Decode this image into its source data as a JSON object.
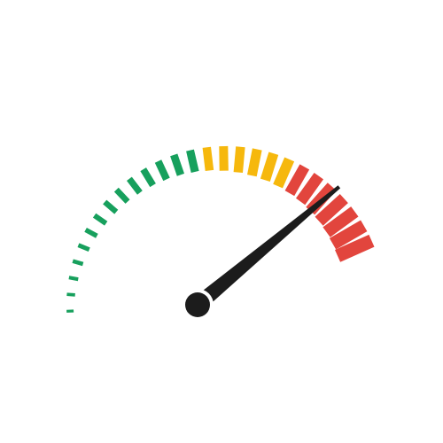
{
  "gauge": {
    "icon": "speedometer-gauge-icon",
    "reading_fraction": 0.9,
    "segments": {
      "green": 14,
      "yellow": 6,
      "red": 7
    },
    "colors": {
      "green": "#17a05d",
      "yellow": "#f6b80d",
      "red": "#e2453d",
      "needle": "#1c1c1c",
      "background": "#ffffff"
    }
  }
}
